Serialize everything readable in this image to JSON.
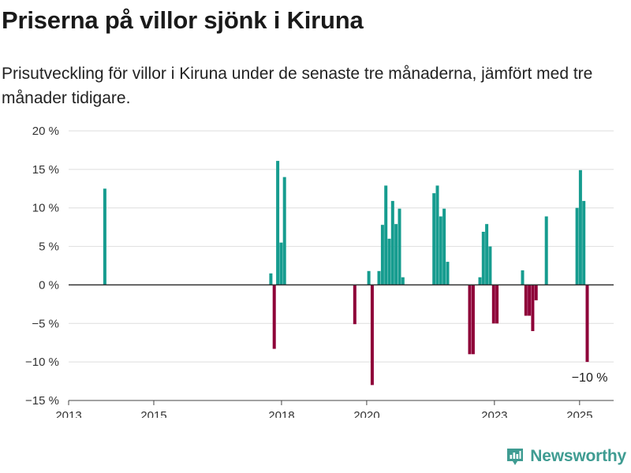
{
  "title": "Priserna på villor sjönk i Kiruna",
  "subtitle": "Prisutveckling för villor i Kiruna under de senaste tre månaderna, jämfört med tre månader tidigare.",
  "brand": {
    "name": "Newsworthy",
    "icon": "newsworthy-logo-icon",
    "color": "#3f9c92"
  },
  "chart_data": {
    "type": "bar",
    "x_unit": "year (fractional)",
    "y_unit": "%",
    "ylim": [
      -15,
      20
    ],
    "xlim": [
      2013,
      2025.8
    ],
    "yticks": [
      20,
      15,
      10,
      5,
      0,
      -5,
      -10,
      -15
    ],
    "ytick_labels": [
      "20 %",
      "15 %",
      "10 %",
      "5 %",
      "0 %",
      "−5 %",
      "−10 %",
      "−15 %"
    ],
    "xticks": [
      2013,
      2015,
      2018,
      2020,
      2023,
      2025
    ],
    "xtick_labels": [
      "2013",
      "2015",
      "2018",
      "2020",
      "2023",
      "2025"
    ],
    "grid": true,
    "colors": {
      "positive": "#169c8f",
      "negative": "#8e0038",
      "zero_line": "#333333",
      "grid": "#dedede"
    },
    "annotation": {
      "text": "−10 %"
    },
    "points": [
      {
        "x": 2013.85,
        "y": 12.5
      },
      {
        "x": 2017.75,
        "y": 1.5
      },
      {
        "x": 2017.83,
        "y": -8.3
      },
      {
        "x": 2017.91,
        "y": 16.1
      },
      {
        "x": 2017.99,
        "y": 5.5
      },
      {
        "x": 2018.07,
        "y": 14.0
      },
      {
        "x": 2019.72,
        "y": -5.1
      },
      {
        "x": 2020.05,
        "y": 1.8
      },
      {
        "x": 2020.13,
        "y": -13.0
      },
      {
        "x": 2020.29,
        "y": 1.8
      },
      {
        "x": 2020.37,
        "y": 7.8
      },
      {
        "x": 2020.45,
        "y": 12.9
      },
      {
        "x": 2020.53,
        "y": 6.0
      },
      {
        "x": 2020.61,
        "y": 10.9
      },
      {
        "x": 2020.69,
        "y": 7.9
      },
      {
        "x": 2020.77,
        "y": 9.9
      },
      {
        "x": 2020.85,
        "y": 1.0
      },
      {
        "x": 2021.58,
        "y": 11.9
      },
      {
        "x": 2021.66,
        "y": 12.9
      },
      {
        "x": 2021.74,
        "y": 8.9
      },
      {
        "x": 2021.82,
        "y": 9.9
      },
      {
        "x": 2021.9,
        "y": 3.0
      },
      {
        "x": 2022.42,
        "y": -9.0
      },
      {
        "x": 2022.5,
        "y": -9.0
      },
      {
        "x": 2022.66,
        "y": 1.0
      },
      {
        "x": 2022.74,
        "y": 6.9
      },
      {
        "x": 2022.82,
        "y": 7.9
      },
      {
        "x": 2022.9,
        "y": 5.0
      },
      {
        "x": 2022.98,
        "y": -5.0
      },
      {
        "x": 2023.06,
        "y": -5.0
      },
      {
        "x": 2023.66,
        "y": 1.9
      },
      {
        "x": 2023.74,
        "y": -4.0
      },
      {
        "x": 2023.82,
        "y": -4.0
      },
      {
        "x": 2023.9,
        "y": -6.0
      },
      {
        "x": 2023.98,
        "y": -2.0
      },
      {
        "x": 2024.22,
        "y": 8.9
      },
      {
        "x": 2024.94,
        "y": 10.0
      },
      {
        "x": 2025.02,
        "y": 14.9
      },
      {
        "x": 2025.1,
        "y": 10.9
      },
      {
        "x": 2025.18,
        "y": -10.0
      }
    ]
  }
}
